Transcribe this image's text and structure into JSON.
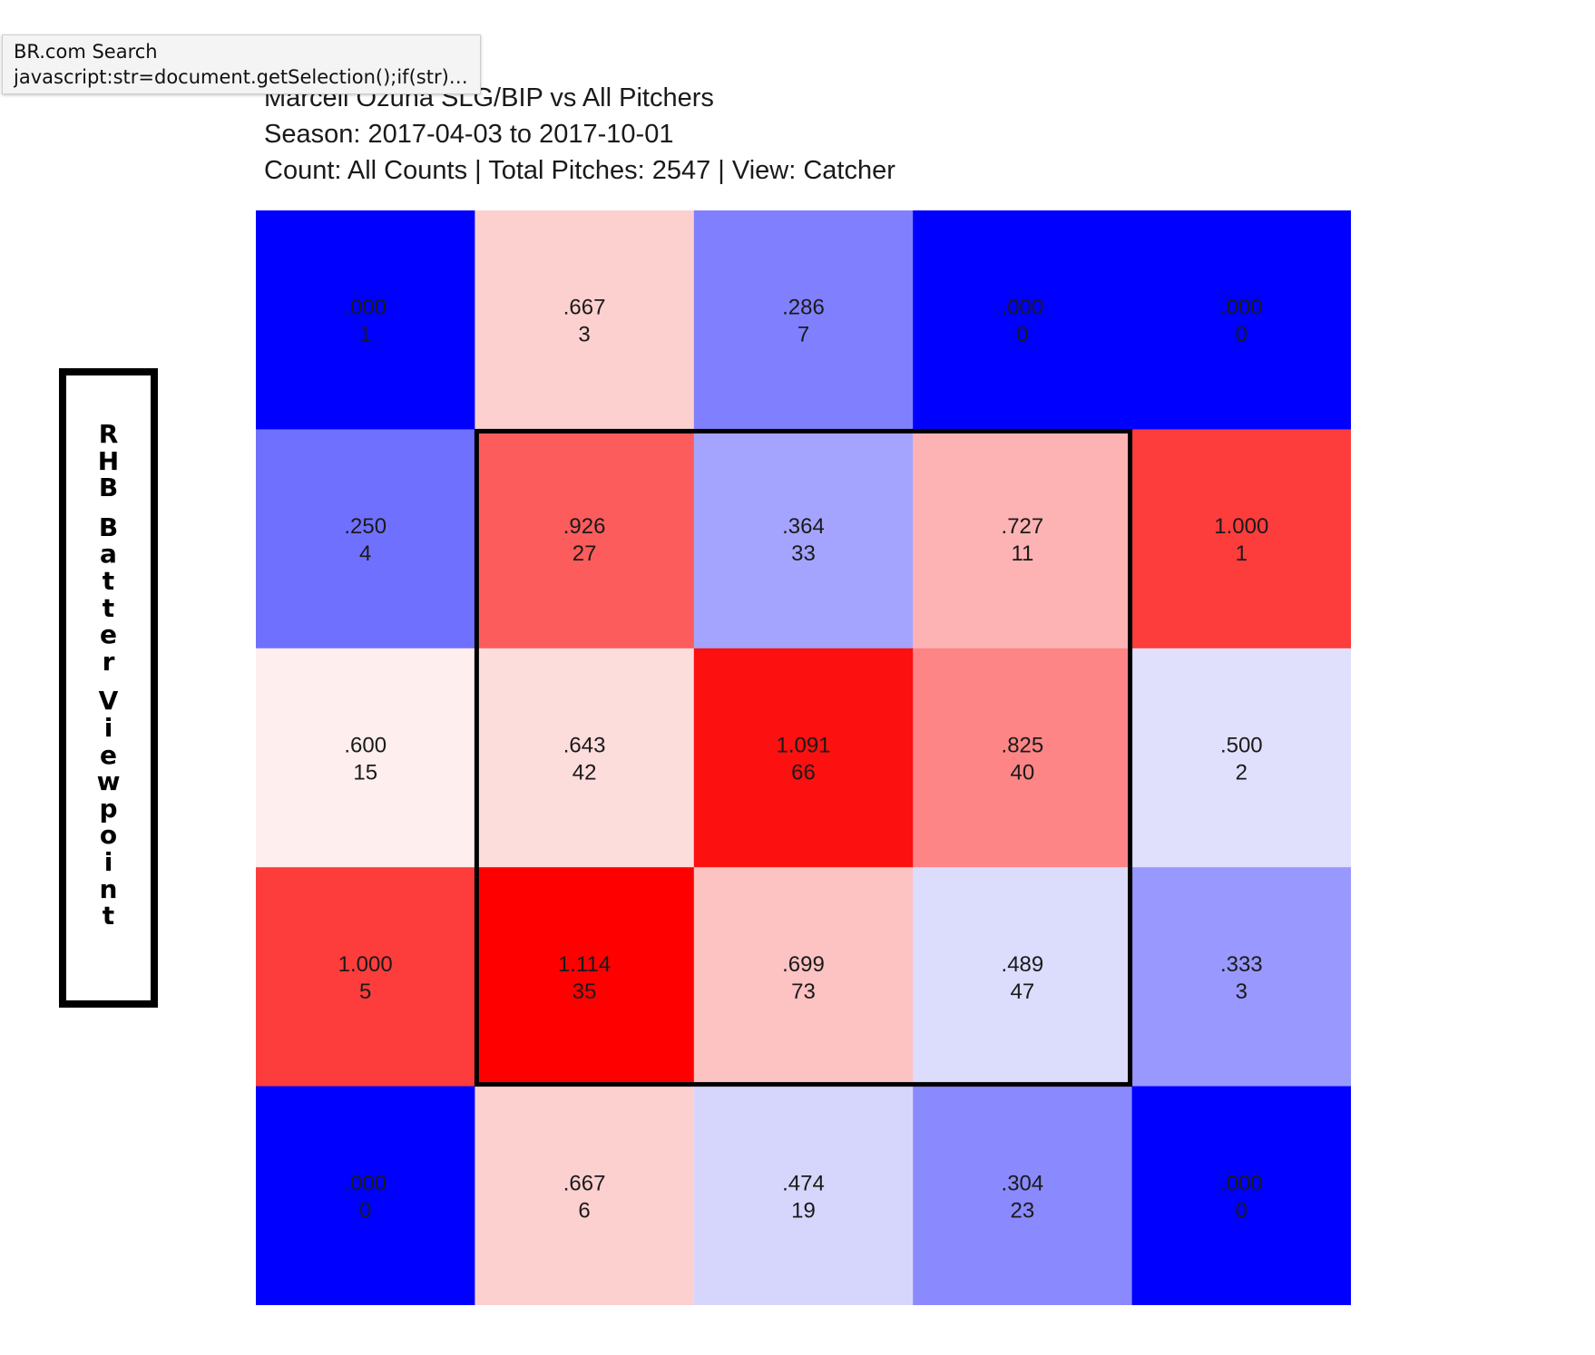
{
  "tooltip": {
    "title": "BR.com Search",
    "url": "javascript:str=document.getSelection();if(str){..."
  },
  "header": {
    "title": "Marcell Ozuna SLG/BIP vs All Pitchers",
    "season": "Season: 2017-04-03 to 2017-10-01",
    "count_line": "Count: All Counts | Total Pitches: 2547 | View: Catcher"
  },
  "viewpoint_label": "RHB Batter Viewpoint",
  "chart_data": {
    "type": "heatmap",
    "title": "Marcell Ozuna SLG/BIP vs All Pitchers",
    "rows": 5,
    "cols": 5,
    "strike_zone": {
      "row_start": 1,
      "row_end": 3,
      "col_start": 1,
      "col_end": 3
    },
    "cells": [
      [
        {
          "label": ".000",
          "count": "1",
          "value": 0.0,
          "color": "#0000ff"
        },
        {
          "label": ".667",
          "count": "3",
          "value": 0.667,
          "color": "#fdd0d0"
        },
        {
          "label": ".286",
          "count": "7",
          "value": 0.286,
          "color": "#8080ff"
        },
        {
          "label": ".000",
          "count": "0",
          "value": 0.0,
          "color": "#0000ff"
        },
        {
          "label": ".000",
          "count": "0",
          "value": 0.0,
          "color": "#0000ff"
        }
      ],
      [
        {
          "label": ".250",
          "count": "4",
          "value": 0.25,
          "color": "#7070ff"
        },
        {
          "label": ".926",
          "count": "27",
          "value": 0.926,
          "color": "#fd5c5c"
        },
        {
          "label": ".364",
          "count": "33",
          "value": 0.364,
          "color": "#a4a4ff"
        },
        {
          "label": ".727",
          "count": "11",
          "value": 0.727,
          "color": "#fdb3b3"
        },
        {
          "label": "1.000",
          "count": "1",
          "value": 1.0,
          "color": "#fd3c3c"
        }
      ],
      [
        {
          "label": ".600",
          "count": "15",
          "value": 0.6,
          "color": "#feeeee"
        },
        {
          "label": ".643",
          "count": "42",
          "value": 0.643,
          "color": "#fddcdc"
        },
        {
          "label": "1.091",
          "count": "66",
          "value": 1.091,
          "color": "#fd1010"
        },
        {
          "label": ".825",
          "count": "40",
          "value": 0.825,
          "color": "#fd8585"
        },
        {
          "label": ".500",
          "count": "2",
          "value": 0.5,
          "color": "#e0e0fc"
        }
      ],
      [
        {
          "label": "1.000",
          "count": "5",
          "value": 1.0,
          "color": "#fd3c3c"
        },
        {
          "label": "1.114",
          "count": "35",
          "value": 1.114,
          "color": "#ff0000"
        },
        {
          "label": ".699",
          "count": "73",
          "value": 0.699,
          "color": "#fdc2c2"
        },
        {
          "label": ".489",
          "count": "47",
          "value": 0.489,
          "color": "#dcdcfd"
        },
        {
          "label": ".333",
          "count": "3",
          "value": 0.333,
          "color": "#9898fe"
        }
      ],
      [
        {
          "label": ".000",
          "count": "0",
          "value": 0.0,
          "color": "#0000ff"
        },
        {
          "label": ".667",
          "count": "6",
          "value": 0.667,
          "color": "#fdd0d0"
        },
        {
          "label": ".474",
          "count": "19",
          "value": 0.474,
          "color": "#d6d6fd"
        },
        {
          "label": ".304",
          "count": "23",
          "value": 0.304,
          "color": "#8a8afe"
        },
        {
          "label": ".000",
          "count": "0",
          "value": 0.0,
          "color": "#0000ff"
        }
      ]
    ]
  }
}
